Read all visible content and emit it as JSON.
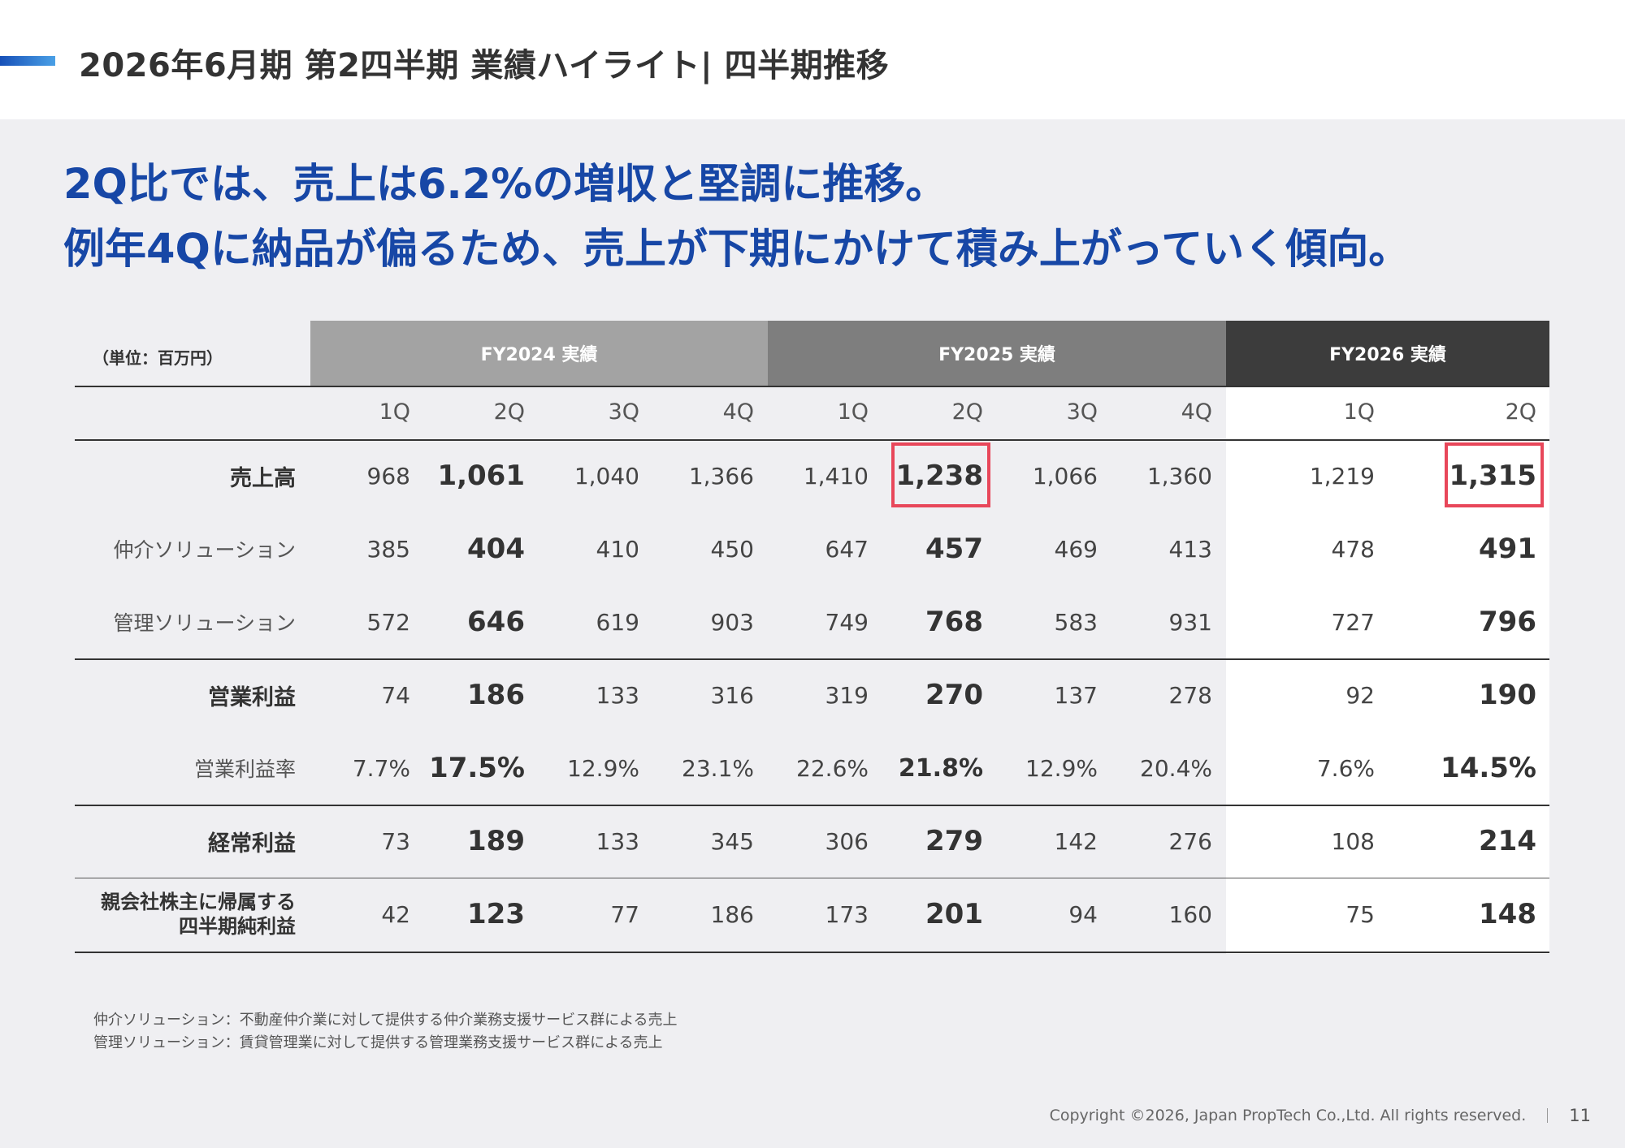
{
  "header": {
    "title": "2026年6月期 第2四半期 業績ハイライト| 四半期推移"
  },
  "headline": {
    "line1": "2Q比では、売上は6.2%の増収と堅調に推移。",
    "line2": "例年4Qに納品が偏るため、売上が下期にかけて積み上がっていく傾向。"
  },
  "table": {
    "unit": "（単位：百万円）",
    "groups": [
      "FY2024 実績",
      "FY2025 実績",
      "FY2026 実績"
    ],
    "group_colors": [
      "#a3a3a3",
      "#7e7e7e",
      "#3c3c3c"
    ],
    "quarters": [
      "1Q",
      "2Q",
      "3Q",
      "4Q",
      "1Q",
      "2Q",
      "3Q",
      "4Q",
      "1Q",
      "2Q"
    ],
    "rows": [
      {
        "label": "売上高",
        "values": [
          "968",
          "1,061",
          "1,040",
          "1,366",
          "1,410",
          "1,238",
          "1,066",
          "1,360",
          "1,219",
          "1,315"
        ]
      },
      {
        "label": "仲介ソリューション",
        "values": [
          "385",
          "404",
          "410",
          "450",
          "647",
          "457",
          "469",
          "413",
          "478",
          "491"
        ]
      },
      {
        "label": "管理ソリューション",
        "values": [
          "572",
          "646",
          "619",
          "903",
          "749",
          "768",
          "583",
          "931",
          "727",
          "796"
        ]
      },
      {
        "label": "営業利益",
        "values": [
          "74",
          "186",
          "133",
          "316",
          "319",
          "270",
          "137",
          "278",
          "92",
          "190"
        ]
      },
      {
        "label": "営業利益率",
        "values": [
          "7.7%",
          "17.5%",
          "12.9%",
          "23.1%",
          "22.6%",
          "21.8%",
          "12.9%",
          "20.4%",
          "7.6%",
          "14.5%"
        ]
      },
      {
        "label": "経常利益",
        "values": [
          "73",
          "189",
          "133",
          "345",
          "306",
          "279",
          "142",
          "276",
          "108",
          "214"
        ]
      },
      {
        "label_line1": "親会社株主に帰属する",
        "label_line2": "四半期純利益",
        "values": [
          "42",
          "123",
          "77",
          "186",
          "173",
          "201",
          "94",
          "160",
          "75",
          "148"
        ]
      }
    ],
    "highlight_color": "#e8475a"
  },
  "notes": {
    "line1": "仲介ソリューション：不動産仲介業に対して提供する仲介業務支援サービス群による売上",
    "line2": "管理ソリューション：賃貸管理業に対して提供する管理業務支援サービス群による売上"
  },
  "footer": {
    "copyright": "Copyright ©2026, Japan PropTech Co.,Ltd. All rights reserved.",
    "page": "11"
  }
}
